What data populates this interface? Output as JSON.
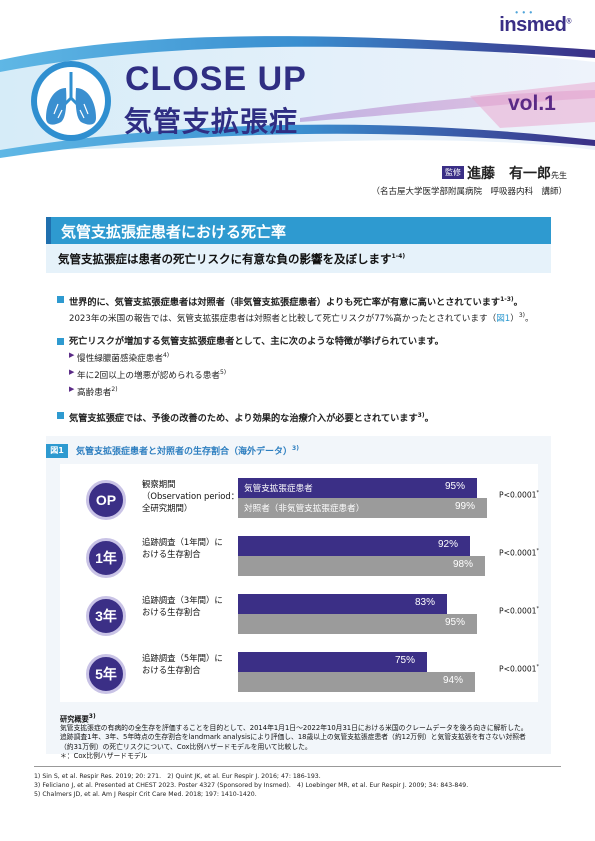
{
  "header": {
    "logo": "insmed",
    "logo_mark": "®",
    "title_en": "CLOSE UP",
    "title_jp": "気管支拡張症",
    "volume": "vol.1",
    "supervisor_role": "監修",
    "supervisor_name": "進藤　有一郎",
    "supervisor_honorific": "先生",
    "supervisor_affiliation": "（名古屋大学医学部附属病院　呼吸器内科　講師）"
  },
  "headline": {
    "title": "気管支拡張症患者における死亡率",
    "subtitle": "気管支拡張症は患者の死亡リスクに有意な負の影響を及ぼします",
    "subtitle_ref": "1-4)"
  },
  "bullets": [
    {
      "main": "世界的に、気管支拡張症患者は対照者（非気管支拡張症患者）よりも死亡率が有意に高いとされています",
      "main_ref": "1-3)",
      "main_end": "。",
      "detail": "2023年の米国の報告では、気管支拡張症患者は対照者と比較して死亡リスクが77%高かったとされています（",
      "detail_fig": "図1",
      "detail_end": "）",
      "detail_ref": "3)",
      "detail_tail": "。"
    },
    {
      "main": "死亡リスクが増加する気管支拡張症患者として、主に次のような特徴が挙げられています。",
      "items": [
        {
          "text": "慢性緑膿菌感染症患者",
          "ref": "4)"
        },
        {
          "text": "年に2回以上の増悪が認められる患者",
          "ref": "5)"
        },
        {
          "text": "高齢患者",
          "ref": "2)"
        }
      ]
    },
    {
      "main": "気管支拡張症では、予後の改善のため、より効果的な治療介入が必要とされています",
      "main_ref": "3)",
      "main_end": "。"
    }
  ],
  "figure": {
    "label": "図1",
    "title": "気管支拡張症患者と対照者の生存割合（海外データ）",
    "title_ref": "3)",
    "series_a_name": "気管支拡張症患者",
    "series_b_name": "対照者（非気管支拡張症患者）",
    "colors": {
      "series_a": "#3b2f86",
      "series_b": "#9b9b9b",
      "accent": "#2e9ad0"
    },
    "rows": [
      {
        "badge": "OP",
        "label_lines": [
          "観察期間",
          "（Observation period：",
          "全研究期間）"
        ],
        "pvalue": "P<0.0001",
        "pmark": "*"
      },
      {
        "badge": "1年",
        "label_lines": [
          "追跡調査（1年間）に",
          "おける生存割合"
        ],
        "pvalue": "P<0.0001",
        "pmark": "*"
      },
      {
        "badge": "3年",
        "label_lines": [
          "追跡調査（3年間）に",
          "おける生存割合"
        ],
        "pvalue": "P<0.0001",
        "pmark": "*"
      },
      {
        "badge": "5年",
        "label_lines": [
          "追跡調査（5年間）に",
          "おける生存割合"
        ],
        "pvalue": "P<0.0001",
        "pmark": "*"
      }
    ],
    "method_title": "研究概要",
    "method_ref": "3)",
    "method_lines": [
      "気管支拡張症の有病的の全生存を評価することを目的として、2014年1月1日〜2022年10月31日における米国のクレームデータを後ろ向きに解析した。",
      "追跡調査1年、3年、5年時点の生存割合をlandmark analysisにより評価し、18歳以上の気管支拡張症患者（約12万例）と気管支拡張を有さない対照者",
      "（約31万例）の死亡リスクについて、Cox比例ハザードモデルを用いて比較した。",
      "＊：Cox比例ハザードモデル"
    ]
  },
  "chart_data": {
    "type": "bar",
    "title": "気管支拡張症患者と対照者の生存割合（海外データ）",
    "categories": [
      "OP",
      "1年",
      "3年",
      "5年"
    ],
    "series": [
      {
        "name": "気管支拡張症患者",
        "values": [
          95,
          92,
          83,
          75
        ],
        "labels": [
          "95%",
          "92%",
          "83%",
          "75%"
        ]
      },
      {
        "name": "対照者（非気管支拡張症患者）",
        "values": [
          99,
          98,
          95,
          94
        ],
        "labels": [
          "99%",
          "98%",
          "95%",
          "94%"
        ]
      }
    ],
    "ylim": [
      0,
      100
    ],
    "orientation": "horizontal",
    "pvalues": [
      "P<0.0001*",
      "P<0.0001*",
      "P<0.0001*",
      "P<0.0001*"
    ]
  },
  "references": [
    "1) Sin S, et al. Respir Res. 2019; 20: 271.　2) Quint JK, et al. Eur Respir J. 2016; 47: 186-193.",
    "3) Feliciano J, et al. Presented at CHEST 2023. Poster 4327 (Sponsored by Insmed).　4) Loebinger MR, et al. Eur Respir J. 2009; 34: 843-849.",
    "5) Chalmers JD, et al. Am J Respir Crit Care Med. 2018; 197: 1410-1420."
  ]
}
